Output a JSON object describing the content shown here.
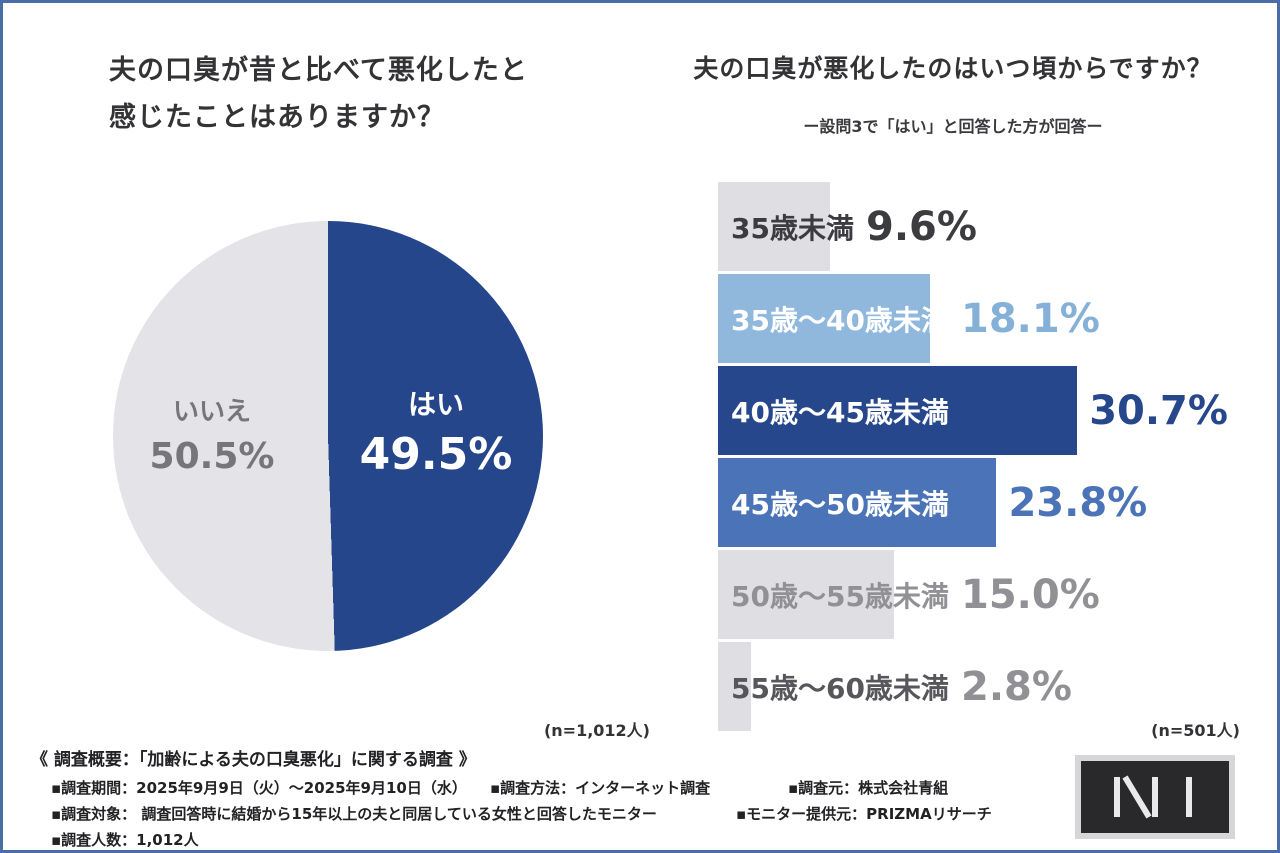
{
  "page": {
    "background": "#ffffff",
    "frame_border_color": "#4a6da6"
  },
  "chart_data": [
    {
      "type": "pie",
      "title": "夫の口臭が昔と比べて悪化したと感じたことはありますか？",
      "title_lines": [
        "夫の口臭が昔と比べて悪化したと",
        "感じたことはありますか？"
      ],
      "n_label": "(n=1,012人)",
      "legend_position": "inside",
      "slices": [
        {
          "label": "はい",
          "value": 49.5,
          "display": "49.5%",
          "color": "#26468b",
          "text_color": "#ffffff"
        },
        {
          "label": "いいえ",
          "value": 50.5,
          "display": "50.5%",
          "color": "#e4e4e8",
          "text_color": "#76767a"
        }
      ]
    },
    {
      "type": "bar",
      "orientation": "horizontal",
      "title": "夫の口臭が悪化したのはいつ頃からですか？",
      "subtitle": "ー設問3で「はい」と回答した方が回答ー",
      "n_label": "(n=501人)",
      "xlim": [
        0,
        35
      ],
      "grid": false,
      "bars": [
        {
          "label": "35歳未満",
          "value": 9.6,
          "display": "9.6%",
          "bar_color": "#dfdfe3",
          "label_color": "#3c3c40",
          "value_color": "#3c3c40"
        },
        {
          "label": "35歳〜40歳未満",
          "value": 18.1,
          "display": "18.1%",
          "bar_color": "#8fb8dc",
          "label_color": "#ffffff",
          "value_color": "#85b1d8"
        },
        {
          "label": "40歳〜45歳未満",
          "value": 30.7,
          "display": "30.7%",
          "bar_color": "#27478c",
          "label_color": "#ffffff",
          "value_color": "#27478c"
        },
        {
          "label": "45歳〜50歳未満",
          "value": 23.8,
          "display": "23.8%",
          "bar_color": "#4a74b7",
          "label_color": "#ffffff",
          "value_color": "#4a74b7"
        },
        {
          "label": "50歳〜55歳未満",
          "value": 15.0,
          "display": "15.0%",
          "bar_color": "#dfdfe3",
          "label_color": "#919195",
          "value_color": "#919195"
        },
        {
          "label": "55歳〜60歳未満",
          "value": 2.8,
          "display": "2.8%",
          "bar_color": "#dfdfe3",
          "label_color": "#57575b",
          "value_color": "#919195"
        }
      ]
    }
  ],
  "footer": {
    "heading": "《 調査概要：「加齢による夫の口臭悪化」に関する調査 》",
    "items_row1": [
      "▪調査期間：2025年9月9日（火）〜2025年9月10日（水）",
      "▪調査方法：インターネット調査",
      "▪調査元：株式会社青組"
    ],
    "items_row2": [
      "▪調査対象： 調査回答時に結婚から15年以上の夫と同居している女性と回答したモニター",
      "▪モニター提供元：PRIZMAリサーチ"
    ],
    "items_row3": [
      "▪調査人数：1,012人"
    ]
  },
  "logo": {
    "outer_color": "#d6d6d8",
    "inner_color": "#29292b",
    "stroke_color": "#e9e9ea"
  }
}
